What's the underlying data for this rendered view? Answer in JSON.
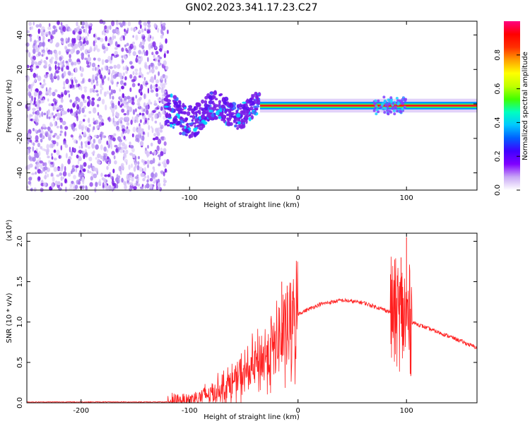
{
  "title": "GN02.2023.341.17.23.C27",
  "chart_data": [
    {
      "type": "heatmap",
      "xlabel": "Height of straight line (km)",
      "ylabel": "Frequency (Hz)",
      "xlim": [
        -250,
        165
      ],
      "ylim": [
        -50,
        48
      ],
      "xticks": [
        -200,
        -100,
        0,
        100
      ],
      "yticks": [
        -40,
        -20,
        0,
        20,
        40
      ],
      "colorbar": {
        "label": "Normalized spectral amplitude",
        "range": [
          0,
          1
        ],
        "ticks": [
          "0.0",
          "0.2",
          "0.4",
          "0.6",
          "0.8"
        ],
        "colormap": [
          "#ffffff",
          "#c9a8f5",
          "#8000ff",
          "#4000ff",
          "#0060ff",
          "#00c8ff",
          "#00ffc0",
          "#40ff00",
          "#c0ff00",
          "#ffff00",
          "#ffa000",
          "#ff3000",
          "#ff0000",
          "#ff0080"
        ]
      },
      "grid": false,
      "colors": {
        "noise_light": "#d8c4f8",
        "noise_mid": "#a77cf0",
        "noise_dark": "#7a1ee8",
        "signal_core": "#ff1a1a",
        "signal_mid": "#00d2ff"
      },
      "regions": [
        {
          "name": "noise",
          "x": [
            -250,
            -120
          ],
          "y": [
            -50,
            48
          ],
          "amplitude": 0.05
        },
        {
          "name": "onset",
          "x": [
            -122,
            -35
          ],
          "y_center": -8,
          "y_spread": 20,
          "amplitude": 0.3
        },
        {
          "name": "band",
          "x": [
            -35,
            165
          ],
          "y_center": -1,
          "y_halfwidth": 2,
          "amplitude": 0.95
        }
      ]
    },
    {
      "type": "line",
      "xlabel": "Height of straight line (km)",
      "ylabel": "SNR (10 * v/v)",
      "yscale_label": "(x10⁴)",
      "xlim": [
        -250,
        165
      ],
      "ylim": [
        0,
        2.1
      ],
      "xticks": [
        -200,
        -100,
        0,
        100
      ],
      "yticks": [
        "0.0",
        "0.5",
        "1.0",
        "1.5",
        "2.0"
      ],
      "color": "#ff2020",
      "series": [
        {
          "x": [
            -250,
            -120,
            -100,
            -80,
            -60,
            -40,
            -20,
            -5,
            0,
            20,
            40,
            60,
            80,
            90,
            95,
            100,
            105,
            120,
            140,
            165
          ],
          "y": [
            0.01,
            0.01,
            0.04,
            0.12,
            0.25,
            0.45,
            0.72,
            0.95,
            1.1,
            1.22,
            1.27,
            1.24,
            1.15,
            1.1,
            1.08,
            1.05,
            1.0,
            0.92,
            0.82,
            0.68
          ]
        }
      ],
      "spikes": [
        {
          "x": -15,
          "y": 1.5
        },
        {
          "x": -10,
          "y": 1.45
        },
        {
          "x": -5,
          "y": 1.38
        },
        {
          "x": 95,
          "y": 1.8
        },
        {
          "x": 100,
          "y": 2.05
        }
      ]
    }
  ]
}
